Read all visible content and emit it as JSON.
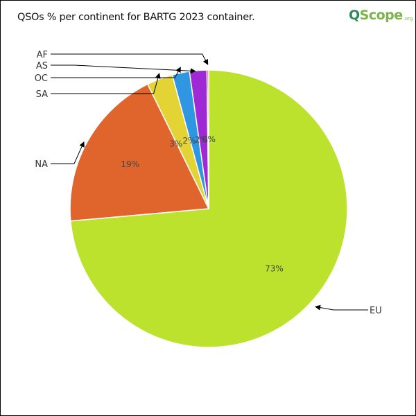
{
  "chart_data": {
    "type": "pie",
    "title": "QSOs % per continent for BARTG 2023 container.",
    "slices": [
      {
        "label": "EU",
        "value": 73,
        "pct_label": "73%",
        "color": "#bde22d"
      },
      {
        "label": "NA",
        "value": 19,
        "pct_label": "19%",
        "color": "#e0652d"
      },
      {
        "label": "SA",
        "value": 3,
        "pct_label": "3%",
        "color": "#e3d334"
      },
      {
        "label": "OC",
        "value": 2,
        "pct_label": "2%",
        "color": "#2f97e2"
      },
      {
        "label": "AS",
        "value": 2,
        "pct_label": "2%",
        "color": "#a029d6"
      },
      {
        "label": "AF",
        "value": 0.2,
        "pct_label": "0%",
        "color": "#e35a4a"
      }
    ]
  },
  "logo": {
    "text": "QScope",
    "suffix": ".org",
    "colors": {
      "q": "#2e8b57",
      "scope": "#7ab54a"
    }
  }
}
